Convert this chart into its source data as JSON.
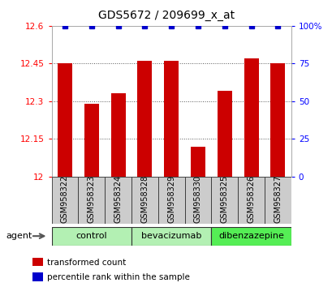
{
  "title": "GDS5672 / 209699_x_at",
  "samples": [
    "GSM958322",
    "GSM958323",
    "GSM958324",
    "GSM958328",
    "GSM958329",
    "GSM958330",
    "GSM958325",
    "GSM958326",
    "GSM958327"
  ],
  "bar_values": [
    12.45,
    12.29,
    12.33,
    12.46,
    12.46,
    12.12,
    12.34,
    12.47,
    12.45
  ],
  "percentile_values": [
    100,
    100,
    100,
    100,
    100,
    100,
    100,
    100,
    100
  ],
  "bar_color": "#cc0000",
  "percentile_color": "#0000cc",
  "ylim_left": [
    12.0,
    12.6
  ],
  "ylim_right": [
    0,
    100
  ],
  "yticks_left": [
    12.0,
    12.15,
    12.3,
    12.45,
    12.6
  ],
  "yticks_right": [
    0,
    25,
    50,
    75,
    100
  ],
  "ytick_labels_left": [
    "12",
    "12.15",
    "12.3",
    "12.45",
    "12.6"
  ],
  "ytick_labels_right": [
    "0",
    "25",
    "50",
    "75",
    "100%"
  ],
  "groups": [
    {
      "label": "control",
      "indices": [
        0,
        1,
        2
      ],
      "color": "#b3f0b3"
    },
    {
      "label": "bevacizumab",
      "indices": [
        3,
        4,
        5
      ],
      "color": "#b3f0b3"
    },
    {
      "label": "dibenzazepine",
      "indices": [
        6,
        7,
        8
      ],
      "color": "#55ee55"
    }
  ],
  "legend_bar_label": "transformed count",
  "legend_pct_label": "percentile rank within the sample",
  "agent_label": "agent",
  "bar_width": 0.55,
  "grid_color": "#555555",
  "bg_color": "#ffffff",
  "plot_bg_color": "#ffffff",
  "bar_bottom": 12.0,
  "sample_box_color": "#cccccc",
  "title_fontsize": 10,
  "tick_fontsize": 7.5,
  "label_fontsize": 7,
  "group_fontsize": 8
}
